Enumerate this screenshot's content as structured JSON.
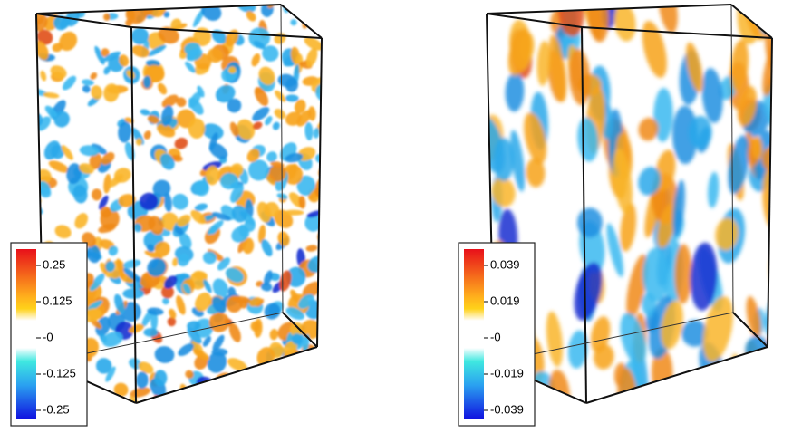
{
  "panels": [
    {
      "colorbar": {
        "labels": [
          "0.25",
          "0.125",
          "-0",
          "-0.125",
          "-0.25"
        ]
      }
    },
    {
      "colorbar": {
        "labels": [
          "0.039",
          "0.019",
          "-0",
          "-0.019",
          "-0.039"
        ]
      }
    }
  ]
}
